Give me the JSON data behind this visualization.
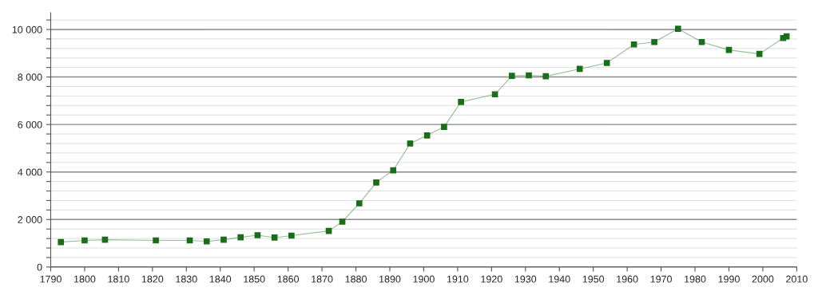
{
  "chart_data": {
    "type": "line",
    "marker": "square",
    "line_style": "solid",
    "grid": "y",
    "x": [
      1793,
      1800,
      1806,
      1821,
      1831,
      1836,
      1841,
      1846,
      1851,
      1856,
      1861,
      1872,
      1876,
      1881,
      1886,
      1891,
      1896,
      1901,
      1906,
      1911,
      1921,
      1926,
      1931,
      1936,
      1946,
      1954,
      1962,
      1968,
      1975,
      1982,
      1990,
      1999,
      2006,
      2007
    ],
    "series": [
      {
        "color": "#1a6e1a",
        "values": [
          1050,
          1120,
          1150,
          1120,
          1120,
          1080,
          1150,
          1250,
          1340,
          1240,
          1320,
          1520,
          1910,
          2680,
          3560,
          4070,
          5200,
          5540,
          5900,
          6950,
          7270,
          8050,
          8070,
          8030,
          8340,
          8590,
          9370,
          9470,
          10030,
          9470,
          9140,
          8970,
          9640,
          9710
        ]
      }
    ],
    "xlim": [
      1790,
      2010
    ],
    "xticks": [
      1790,
      1800,
      1810,
      1820,
      1830,
      1840,
      1850,
      1860,
      1870,
      1880,
      1890,
      1900,
      1910,
      1920,
      1930,
      1940,
      1950,
      1960,
      1970,
      1980,
      1990,
      2000,
      2010
    ],
    "ylim": [
      0,
      10700
    ],
    "yticks": [
      {
        "value": 0,
        "label": "0"
      },
      {
        "value": 400,
        "label": null
      },
      {
        "value": 800,
        "label": null
      },
      {
        "value": 1200,
        "label": null
      },
      {
        "value": 1600,
        "label": null
      },
      {
        "value": 2000,
        "label": "2 000"
      },
      {
        "value": 2400,
        "label": null
      },
      {
        "value": 2800,
        "label": null
      },
      {
        "value": 3200,
        "label": null
      },
      {
        "value": 3600,
        "label": null
      },
      {
        "value": 4000,
        "label": "4 000"
      },
      {
        "value": 4400,
        "label": null
      },
      {
        "value": 4800,
        "label": null
      },
      {
        "value": 5200,
        "label": null
      },
      {
        "value": 5600,
        "label": null
      },
      {
        "value": 6000,
        "label": "6 000"
      },
      {
        "value": 6400,
        "label": null
      },
      {
        "value": 6800,
        "label": null
      },
      {
        "value": 7200,
        "label": null
      },
      {
        "value": 7600,
        "label": null
      },
      {
        "value": 8000,
        "label": "8 000"
      },
      {
        "value": 8400,
        "label": null
      },
      {
        "value": 8800,
        "label": null
      },
      {
        "value": 9200,
        "label": null
      },
      {
        "value": 9600,
        "label": null
      },
      {
        "value": 10000,
        "label": "10 000"
      },
      {
        "value": 10400,
        "label": null
      }
    ]
  }
}
